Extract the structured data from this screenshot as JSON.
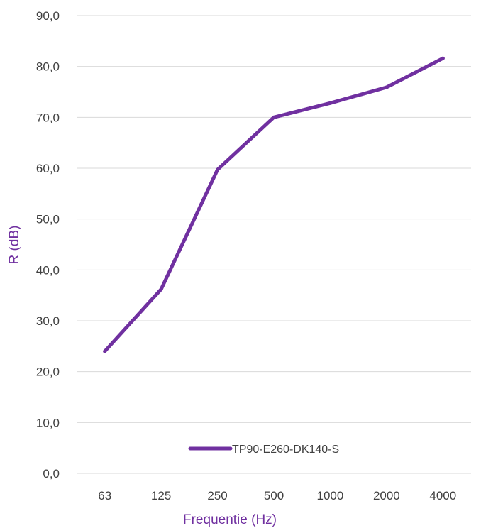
{
  "chart_data": {
    "type": "line",
    "categories": [
      "63",
      "125",
      "250",
      "500",
      "1000",
      "2000",
      "4000"
    ],
    "series": [
      {
        "name": "TP90-E260-DK140-S",
        "values": [
          24.0,
          36.2,
          59.7,
          70.0,
          72.8,
          75.9,
          81.6
        ],
        "color": "#7030a0"
      }
    ],
    "xlabel": "Frequentie (Hz)",
    "ylabel": "R (dB)",
    "ylim": [
      0,
      90
    ],
    "yticks": [
      "0,0",
      "10,0",
      "20,0",
      "30,0",
      "40,0",
      "50,0",
      "60,0",
      "70,0",
      "80,0",
      "90,0"
    ],
    "grid": true,
    "legend": "bottom-right, inside plot"
  }
}
